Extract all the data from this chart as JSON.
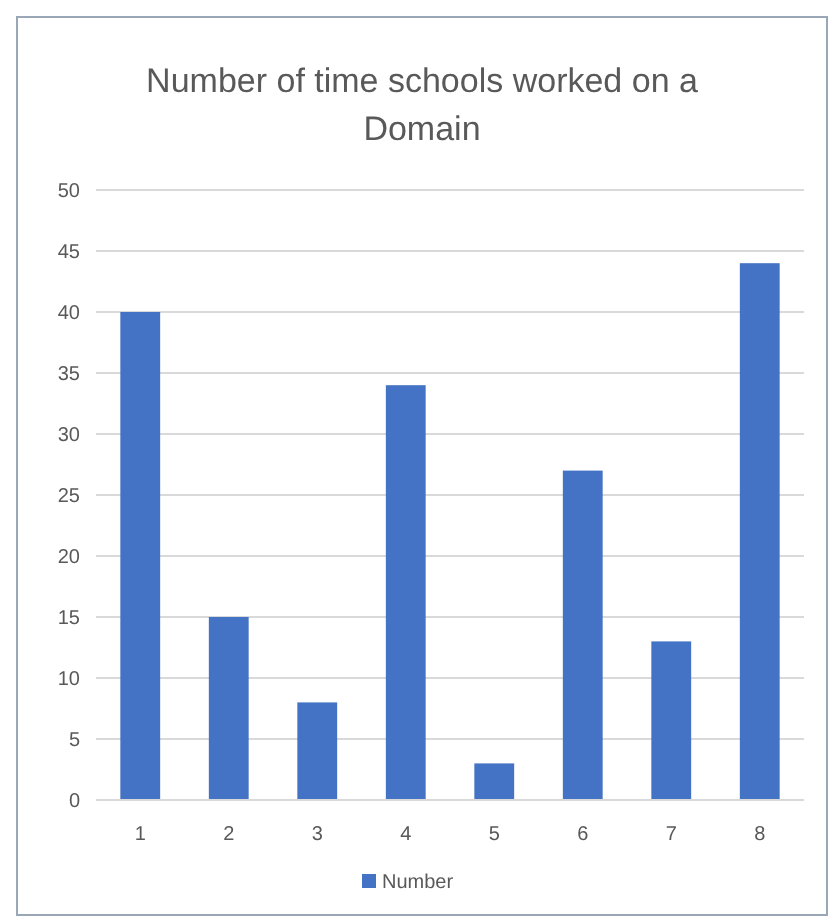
{
  "chart_data": {
    "type": "bar",
    "title": "Number of time schools worked on a Domain",
    "categories": [
      "1",
      "2",
      "3",
      "4",
      "5",
      "6",
      "7",
      "8"
    ],
    "series": [
      {
        "name": "Number",
        "color": "#4472c4",
        "values": [
          40,
          15,
          8,
          34,
          3,
          27,
          13,
          44
        ]
      }
    ],
    "ylim": [
      0,
      50
    ],
    "yticks": [
      0,
      5,
      10,
      15,
      20,
      25,
      30,
      35,
      40,
      45,
      50
    ],
    "grid": "y",
    "legend": "bottom"
  }
}
